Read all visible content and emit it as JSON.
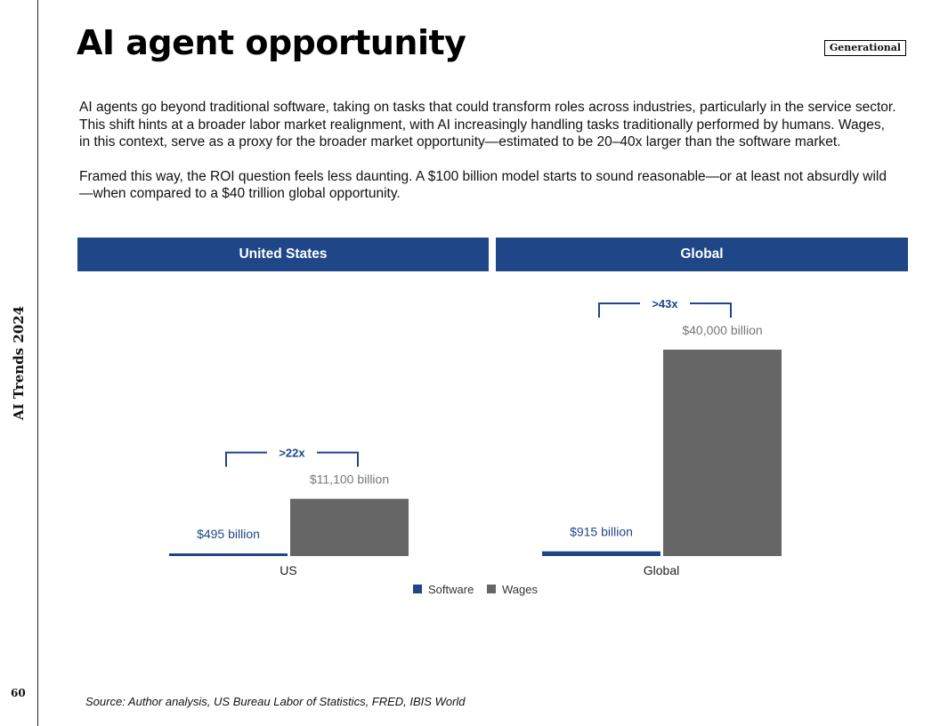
{
  "sidebar": {
    "title": "AI Trends 2024",
    "page_number": "60"
  },
  "header": {
    "title": "AI agent opportunity",
    "badge": "Generational"
  },
  "body": {
    "paragraphs": [
      "AI agents go beyond traditional software, taking on tasks that could transform roles across industries, particularly in the service sector. This shift hints at a broader labor market realignment, with AI increasingly handling tasks traditionally performed by humans. Wages, in this context, serve as a proxy for the broader market opportunity—estimated to be 20–40x larger than the software market.",
      "Framed this way, the ROI question feels less daunting. A $100 billion model starts to sound reasonable—or at least not absurdly wild—when compared to a $40 trillion global opportunity."
    ]
  },
  "panels": {
    "left": "United States",
    "right": "Global"
  },
  "chart_data": {
    "type": "bar",
    "unit": "billion USD",
    "categories": [
      "US",
      "Global"
    ],
    "series": [
      {
        "name": "Software",
        "color": "#1f4788",
        "values": [
          495,
          915
        ],
        "labels": [
          "$495 billion",
          "$915 billion"
        ]
      },
      {
        "name": "Wages",
        "color": "#666666",
        "values": [
          11100,
          40000
        ],
        "labels": [
          "$11,100 billion",
          "$40,000 billion"
        ]
      }
    ],
    "multipliers": [
      ">22x",
      ">43x"
    ],
    "legend": [
      "Software",
      "Wages"
    ],
    "legend_position": "bottom-center",
    "ylim": [
      0,
      40000
    ],
    "grid": false
  },
  "source": "Source: Author analysis, US Bureau Labor of Statistics, FRED, IBIS World"
}
